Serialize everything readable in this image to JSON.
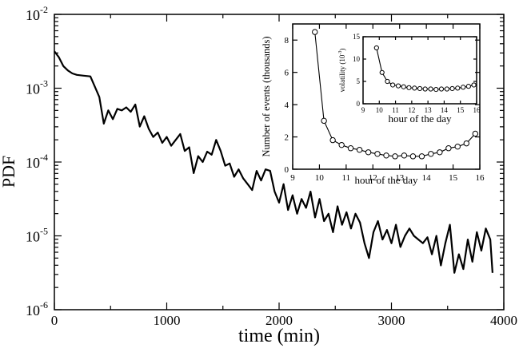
{
  "chart_data": [
    {
      "type": "line",
      "xlabel": "time (min)",
      "ylabel": "PDF",
      "xlim": [
        0,
        4000
      ],
      "ylim_log10": [
        -6,
        -2
      ],
      "yscale": "log",
      "xticks": [
        0,
        1000,
        2000,
        3000,
        4000
      ],
      "xtick_labels": [
        "0",
        "1000",
        "2000",
        "3000",
        "4000"
      ],
      "ytick_exponents": [
        -2,
        -3,
        -4,
        -5,
        -6
      ],
      "ytick_base": "10",
      "ytick_exp_labels": [
        "-2",
        "-3",
        "-4",
        "-5",
        "-6"
      ],
      "series": [
        {
          "name": "PDF",
          "x": [
            0,
            40,
            80,
            120,
            160,
            200,
            260,
            320,
            360,
            400,
            440,
            480,
            520,
            560,
            600,
            640,
            680,
            720,
            760,
            800,
            840,
            880,
            920,
            960,
            1000,
            1040,
            1080,
            1120,
            1160,
            1200,
            1240,
            1280,
            1320,
            1360,
            1400,
            1440,
            1480,
            1520,
            1560,
            1600,
            1640,
            1680,
            1720,
            1760,
            1800,
            1840,
            1880,
            1920,
            1960,
            2000,
            2040,
            2080,
            2120,
            2160,
            2200,
            2240,
            2280,
            2320,
            2360,
            2400,
            2440,
            2480,
            2520,
            2560,
            2600,
            2640,
            2680,
            2720,
            2760,
            2800,
            2840,
            2880,
            2920,
            2960,
            3000,
            3040,
            3080,
            3120,
            3160,
            3200,
            3240,
            3280,
            3320,
            3360,
            3400,
            3440,
            3480,
            3520,
            3560,
            3600,
            3640,
            3680,
            3720,
            3760,
            3800,
            3840,
            3880,
            3900
          ],
          "y_log10": [
            -2.5,
            -2.58,
            -2.7,
            -2.76,
            -2.8,
            -2.82,
            -2.83,
            -2.84,
            -2.98,
            -3.12,
            -3.48,
            -3.3,
            -3.42,
            -3.28,
            -3.3,
            -3.26,
            -3.32,
            -3.22,
            -3.52,
            -3.38,
            -3.55,
            -3.66,
            -3.6,
            -3.74,
            -3.66,
            -3.78,
            -3.7,
            -3.62,
            -3.85,
            -3.8,
            -4.15,
            -3.92,
            -4.0,
            -3.86,
            -3.9,
            -3.7,
            -3.85,
            -4.05,
            -4.02,
            -4.2,
            -4.1,
            -4.22,
            -4.3,
            -4.38,
            -4.12,
            -4.25,
            -4.1,
            -4.12,
            -4.4,
            -4.55,
            -4.3,
            -4.65,
            -4.45,
            -4.7,
            -4.5,
            -4.62,
            -4.4,
            -4.75,
            -4.5,
            -4.8,
            -4.7,
            -4.95,
            -4.6,
            -4.85,
            -4.68,
            -4.9,
            -4.7,
            -4.82,
            -5.1,
            -5.3,
            -4.95,
            -4.8,
            -5.05,
            -4.92,
            -5.1,
            -4.85,
            -5.15,
            -5.0,
            -4.9,
            -5.0,
            -5.05,
            -5.1,
            -5.02,
            -5.25,
            -5.0,
            -5.4,
            -5.1,
            -4.85,
            -5.5,
            -5.25,
            -5.45,
            -5.05,
            -5.35,
            -4.95,
            -5.2,
            -4.9,
            -5.05,
            -5.5
          ]
        }
      ]
    },
    {
      "type": "line",
      "xlabel": "hour of the day",
      "ylabel": "Number of events (thousands)",
      "xlim": [
        9,
        16
      ],
      "ylim": [
        0,
        9
      ],
      "xticks": [
        9,
        10,
        11,
        12,
        13,
        14,
        15,
        16
      ],
      "xtick_labels": [
        "9",
        "10",
        "11",
        "12",
        "13",
        "14",
        "15",
        "16"
      ],
      "yticks": [
        0,
        2,
        4,
        6,
        8
      ],
      "ytick_labels": [
        "0",
        "2",
        "4",
        "6",
        "8"
      ],
      "series": [
        {
          "name": "Number of events",
          "x": [
            9.83,
            10.17,
            10.5,
            10.83,
            11.17,
            11.5,
            11.83,
            12.17,
            12.5,
            12.83,
            13.17,
            13.5,
            13.83,
            14.17,
            14.5,
            14.83,
            15.17,
            15.5,
            15.83
          ],
          "y": [
            8.5,
            3.0,
            1.8,
            1.5,
            1.3,
            1.2,
            1.05,
            0.95,
            0.85,
            0.8,
            0.85,
            0.8,
            0.8,
            0.95,
            1.05,
            1.3,
            1.4,
            1.6,
            2.2
          ]
        }
      ]
    },
    {
      "type": "line",
      "xlabel": "hour of the day",
      "ylabel": "volatility (10",
      "ylabel_exp": "-3",
      "ylabel_close": ")",
      "xlim": [
        9,
        16
      ],
      "ylim": [
        0,
        15
      ],
      "xticks": [
        9,
        10,
        11,
        12,
        13,
        14,
        15,
        16
      ],
      "xtick_labels": [
        "9",
        "10",
        "11",
        "12",
        "13",
        "14",
        "15",
        "16"
      ],
      "yticks": [
        0,
        5,
        10,
        15
      ],
      "ytick_labels": [
        "0",
        "5",
        "10",
        "15"
      ],
      "series": [
        {
          "name": "volatility",
          "x": [
            9.83,
            10.17,
            10.5,
            10.83,
            11.17,
            11.5,
            11.83,
            12.17,
            12.5,
            12.83,
            13.17,
            13.5,
            13.83,
            14.17,
            14.5,
            14.83,
            15.17,
            15.5,
            15.83
          ],
          "y": [
            12.5,
            7.0,
            5.0,
            4.2,
            4.0,
            3.8,
            3.6,
            3.5,
            3.4,
            3.3,
            3.3,
            3.2,
            3.3,
            3.3,
            3.4,
            3.5,
            3.7,
            3.9,
            4.2
          ]
        }
      ]
    }
  ]
}
